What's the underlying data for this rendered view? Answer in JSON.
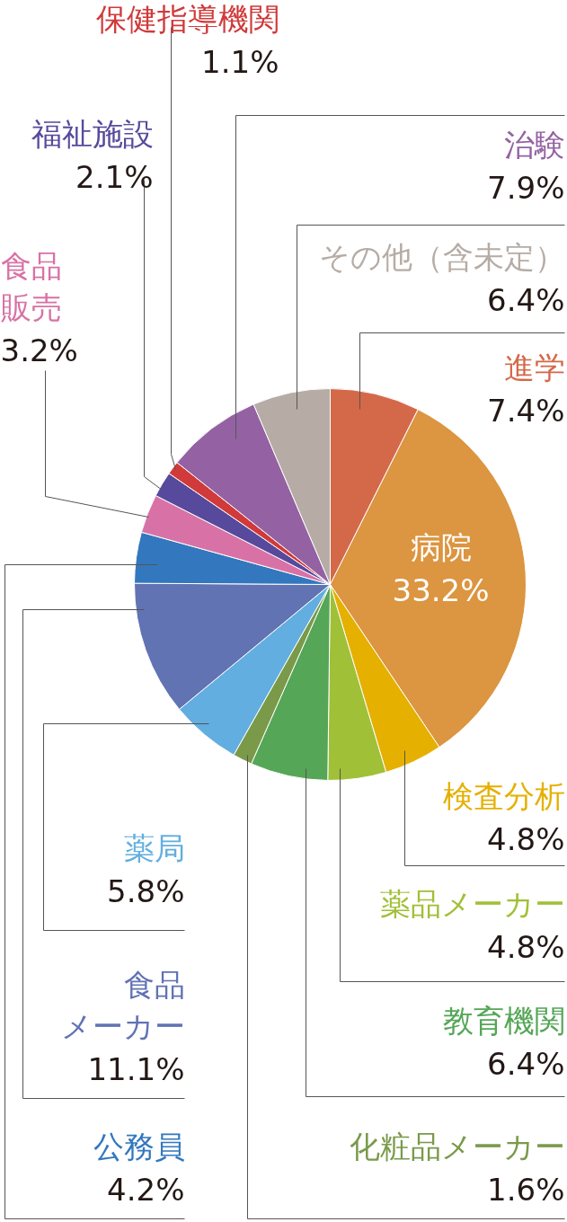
{
  "chart_data": {
    "type": "pie",
    "categories": [
      "進学",
      "病院",
      "検査分析",
      "薬品メーカー",
      "教育機関",
      "化粧品メーカー",
      "薬局",
      "食品メーカー",
      "公務員",
      "食品販売",
      "福祉施設",
      "保健指導機関",
      "治験",
      "その他（含未定）"
    ],
    "values": [
      7.4,
      33.2,
      4.8,
      4.8,
      6.4,
      1.6,
      5.8,
      11.1,
      4.2,
      3.2,
      2.1,
      1.1,
      7.9,
      6.4
    ],
    "value_labels": [
      "7.4%",
      "33.2%",
      "4.8%",
      "4.8%",
      "6.4%",
      "1.6%",
      "5.8%",
      "11.1%",
      "4.2%",
      "3.2%",
      "2.1%",
      "1.1%",
      "7.9%",
      "6.4%"
    ],
    "colors": [
      "#d4694a",
      "#dc9540",
      "#e5b000",
      "#a0c037",
      "#55a657",
      "#7a9a4a",
      "#62aee0",
      "#6173b3",
      "#3378be",
      "#d872a6",
      "#574a9c",
      "#d03a3a",
      "#9462a3",
      "#b6aca5"
    ]
  }
}
